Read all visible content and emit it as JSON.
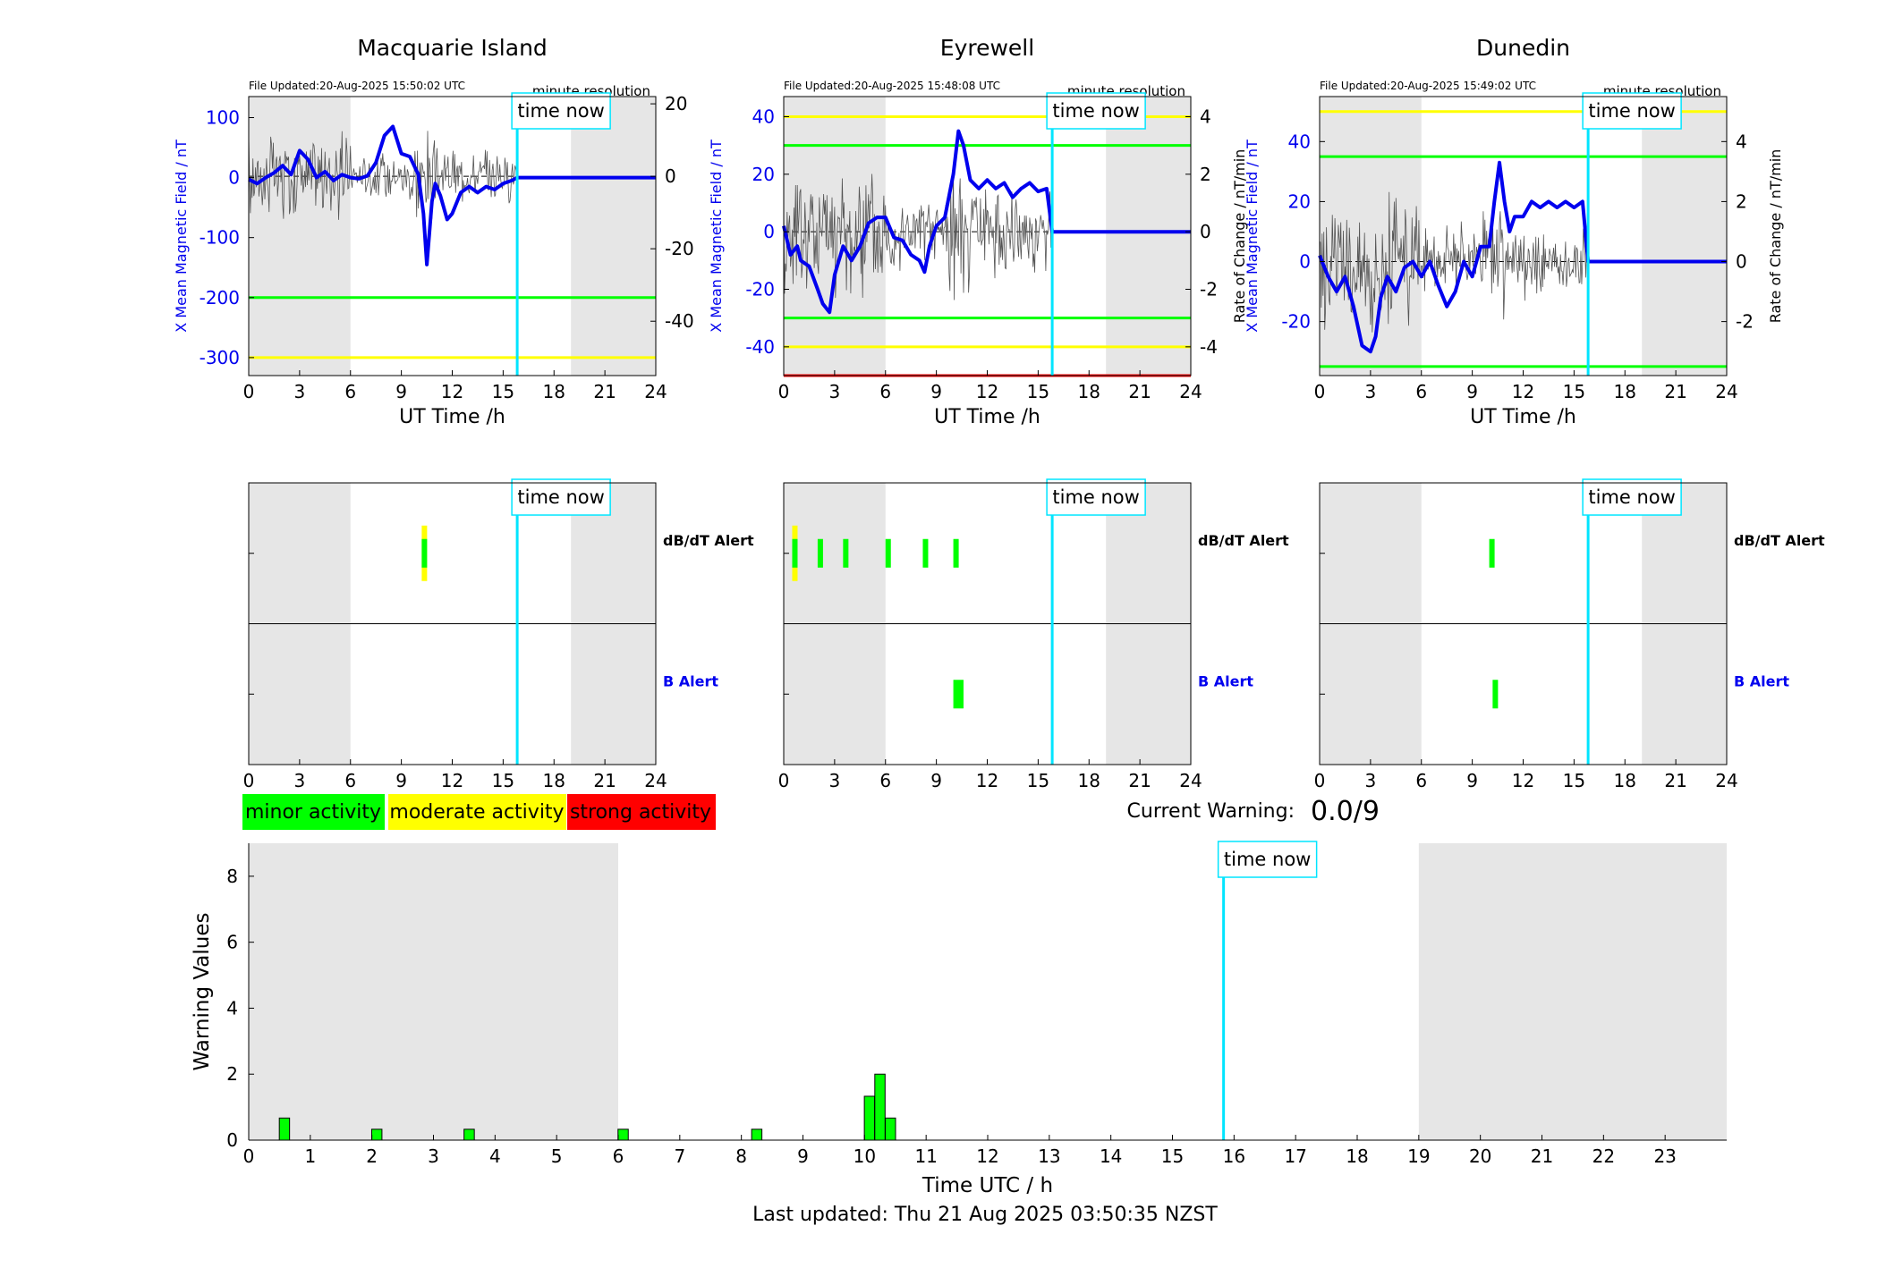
{
  "figure": {
    "time_now_label": "time now",
    "time_now_utc": 15.83,
    "ut_axis_label": "UT Time /h",
    "x_ticks": [
      0,
      3,
      6,
      9,
      12,
      15,
      18,
      21,
      24
    ],
    "night_shading_hours": [
      [
        0,
        6
      ],
      [
        19,
        24
      ]
    ]
  },
  "stations": [
    {
      "name": "Macquarie Island",
      "file_updated": "File Updated:20-Aug-2025 15:50:02 UTC",
      "resolution": "minute resolution",
      "ylabel_left": "X Mean Magnetic Field / nT",
      "ylabel_right": "",
      "ylim_left": [
        -330,
        135
      ],
      "yticks_left": [
        100,
        0,
        -100,
        -200,
        -300
      ],
      "ylim_right": [
        -55,
        22
      ],
      "yticks_right": [
        20,
        0,
        -20,
        -40
      ],
      "green_threshold_nT": -200,
      "yellow_threshold_nT": -300,
      "red_threshold_nT": null,
      "field_series": [
        [
          0,
          -3
        ],
        [
          0.5,
          -10
        ],
        [
          1,
          0
        ],
        [
          1.5,
          8
        ],
        [
          2,
          20
        ],
        [
          2.5,
          5
        ],
        [
          3,
          45
        ],
        [
          3.5,
          30
        ],
        [
          4,
          0
        ],
        [
          4.5,
          10
        ],
        [
          5,
          -5
        ],
        [
          5.5,
          5
        ],
        [
          6,
          0
        ],
        [
          6.5,
          -2
        ],
        [
          7,
          3
        ],
        [
          7.5,
          25
        ],
        [
          8,
          70
        ],
        [
          8.5,
          85
        ],
        [
          9,
          40
        ],
        [
          9.5,
          35
        ],
        [
          10,
          5
        ],
        [
          10.3,
          -60
        ],
        [
          10.5,
          -145
        ],
        [
          10.8,
          -40
        ],
        [
          11,
          -10
        ],
        [
          11.3,
          -30
        ],
        [
          11.7,
          -70
        ],
        [
          12,
          -60
        ],
        [
          12.5,
          -25
        ],
        [
          13,
          -15
        ],
        [
          13.5,
          -25
        ],
        [
          14,
          -15
        ],
        [
          14.5,
          -20
        ],
        [
          15,
          -10
        ],
        [
          15.5,
          -5
        ],
        [
          15.83,
          0
        ],
        [
          24,
          0
        ]
      ],
      "rate_amplitude_right": 6,
      "dbdt_alerts": [
        {
          "start": 10.2,
          "end": 10.5,
          "level": "moderate"
        }
      ],
      "b_alerts": []
    },
    {
      "name": "Eyrewell",
      "file_updated": "File Updated:20-Aug-2025 15:48:08 UTC",
      "resolution": "minute resolution",
      "ylabel_left": "X Mean Magnetic Field / nT",
      "ylabel_right": "Rate of Change / nT/min",
      "ylim_left": [
        -50,
        47
      ],
      "yticks_left": [
        40,
        20,
        0,
        -20,
        -40
      ],
      "ylim_right": [
        -5,
        4.7
      ],
      "yticks_right": [
        4,
        2,
        0,
        -2,
        -4
      ],
      "green_threshold_nT": 30,
      "green_threshold_low_nT": -30,
      "yellow_threshold_nT": 40,
      "yellow_threshold_low_nT": -40,
      "red_threshold_nT": -50,
      "field_series": [
        [
          0,
          2
        ],
        [
          0.4,
          -8
        ],
        [
          0.8,
          -5
        ],
        [
          1,
          -10
        ],
        [
          1.5,
          -12
        ],
        [
          2,
          -20
        ],
        [
          2.3,
          -25
        ],
        [
          2.7,
          -28
        ],
        [
          3,
          -15
        ],
        [
          3.5,
          -5
        ],
        [
          4,
          -10
        ],
        [
          4.5,
          -5
        ],
        [
          5,
          3
        ],
        [
          5.5,
          5
        ],
        [
          6,
          5
        ],
        [
          6.5,
          -2
        ],
        [
          7,
          -3
        ],
        [
          7.5,
          -8
        ],
        [
          8,
          -10
        ],
        [
          8.3,
          -14
        ],
        [
          8.6,
          -5
        ],
        [
          9,
          2
        ],
        [
          9.5,
          5
        ],
        [
          10,
          20
        ],
        [
          10.3,
          35
        ],
        [
          10.6,
          30
        ],
        [
          11,
          18
        ],
        [
          11.5,
          15
        ],
        [
          12,
          18
        ],
        [
          12.5,
          15
        ],
        [
          13,
          17
        ],
        [
          13.5,
          12
        ],
        [
          14,
          15
        ],
        [
          14.5,
          17
        ],
        [
          15,
          14
        ],
        [
          15.5,
          15
        ],
        [
          15.83,
          0
        ],
        [
          24,
          0
        ]
      ],
      "rate_amplitude_right": 1.2,
      "dbdt_alerts": [
        {
          "start": 0.5,
          "end": 0.8,
          "level": "moderate"
        },
        {
          "start": 2.0,
          "end": 2.3,
          "level": "minor"
        },
        {
          "start": 3.5,
          "end": 3.8,
          "level": "minor"
        },
        {
          "start": 6.0,
          "end": 6.3,
          "level": "minor"
        },
        {
          "start": 8.2,
          "end": 8.5,
          "level": "minor"
        },
        {
          "start": 10.0,
          "end": 10.3,
          "level": "minor"
        }
      ],
      "b_alerts": [
        {
          "start": 10.0,
          "end": 10.6,
          "level": "minor"
        }
      ]
    },
    {
      "name": "Dunedin",
      "file_updated": "File Updated:20-Aug-2025 15:49:02 UTC",
      "resolution": "minute resolution",
      "ylabel_left": "X Mean Magnetic Field / nT",
      "ylabel_right": "Rate of Change / nT/min",
      "ylim_left": [
        -38,
        55
      ],
      "yticks_left": [
        40,
        20,
        0,
        -20
      ],
      "ylim_right": [
        -3.8,
        5.5
      ],
      "yticks_right": [
        4,
        2,
        0,
        -2
      ],
      "green_threshold_nT": 35,
      "green_threshold_low_nT": -35,
      "yellow_threshold_nT": 50,
      "red_threshold_nT": null,
      "field_series": [
        [
          0,
          2
        ],
        [
          0.5,
          -5
        ],
        [
          1,
          -10
        ],
        [
          1.5,
          -5
        ],
        [
          2,
          -15
        ],
        [
          2.5,
          -28
        ],
        [
          3,
          -30
        ],
        [
          3.3,
          -25
        ],
        [
          3.6,
          -12
        ],
        [
          4,
          -5
        ],
        [
          4.5,
          -10
        ],
        [
          5,
          -2
        ],
        [
          5.5,
          0
        ],
        [
          6,
          -5
        ],
        [
          6.5,
          0
        ],
        [
          7,
          -8
        ],
        [
          7.5,
          -15
        ],
        [
          8,
          -10
        ],
        [
          8.5,
          0
        ],
        [
          9,
          -5
        ],
        [
          9.5,
          5
        ],
        [
          10,
          5
        ],
        [
          10.3,
          20
        ],
        [
          10.6,
          33
        ],
        [
          10.9,
          20
        ],
        [
          11.2,
          10
        ],
        [
          11.5,
          15
        ],
        [
          12,
          15
        ],
        [
          12.5,
          20
        ],
        [
          13,
          18
        ],
        [
          13.5,
          20
        ],
        [
          14,
          18
        ],
        [
          14.5,
          20
        ],
        [
          15,
          18
        ],
        [
          15.5,
          20
        ],
        [
          15.83,
          0
        ],
        [
          24,
          0
        ]
      ],
      "rate_amplitude_right": 1.0,
      "dbdt_alerts": [
        {
          "start": 10.0,
          "end": 10.3,
          "level": "minor"
        }
      ],
      "b_alerts": [
        {
          "start": 10.2,
          "end": 10.5,
          "level": "minor"
        }
      ]
    }
  ],
  "alert_panel": {
    "dbdt_label": "dB/dT Alert",
    "b_label": "B Alert"
  },
  "legend": {
    "minor": "minor activity",
    "moderate": "moderate activity",
    "strong": "strong activity"
  },
  "current_warning": {
    "label": "Current Warning:",
    "value": "0.0/9"
  },
  "colors": {
    "minor": "#00ff00",
    "moderate": "#ffff00",
    "strong": "#ff0000",
    "time_now": "#00e5ff",
    "field_line": "#0000ee",
    "night": "#e6e6e6"
  },
  "chart_data": [
    {
      "type": "bar",
      "title": "",
      "xlabel": "Time UTC / h",
      "ylabel": "Warning Values",
      "xlim": [
        0,
        24
      ],
      "ylim": [
        0,
        9
      ],
      "x_ticks": [
        0,
        1,
        2,
        3,
        4,
        5,
        6,
        7,
        8,
        9,
        10,
        11,
        12,
        13,
        14,
        15,
        16,
        17,
        18,
        19,
        20,
        21,
        22,
        23
      ],
      "y_ticks": [
        0,
        2,
        4,
        6,
        8
      ],
      "bars": [
        {
          "x": 0.58,
          "value": 0.67
        },
        {
          "x": 2.08,
          "value": 0.33
        },
        {
          "x": 3.58,
          "value": 0.33
        },
        {
          "x": 6.08,
          "value": 0.33
        },
        {
          "x": 8.25,
          "value": 0.33
        },
        {
          "x": 10.08,
          "value": 1.33
        },
        {
          "x": 10.25,
          "value": 2.0
        },
        {
          "x": 10.42,
          "value": 0.67
        }
      ]
    }
  ],
  "footer": {
    "last_updated": "Last updated: Thu 21 Aug 2025 03:50:35 NZST"
  }
}
